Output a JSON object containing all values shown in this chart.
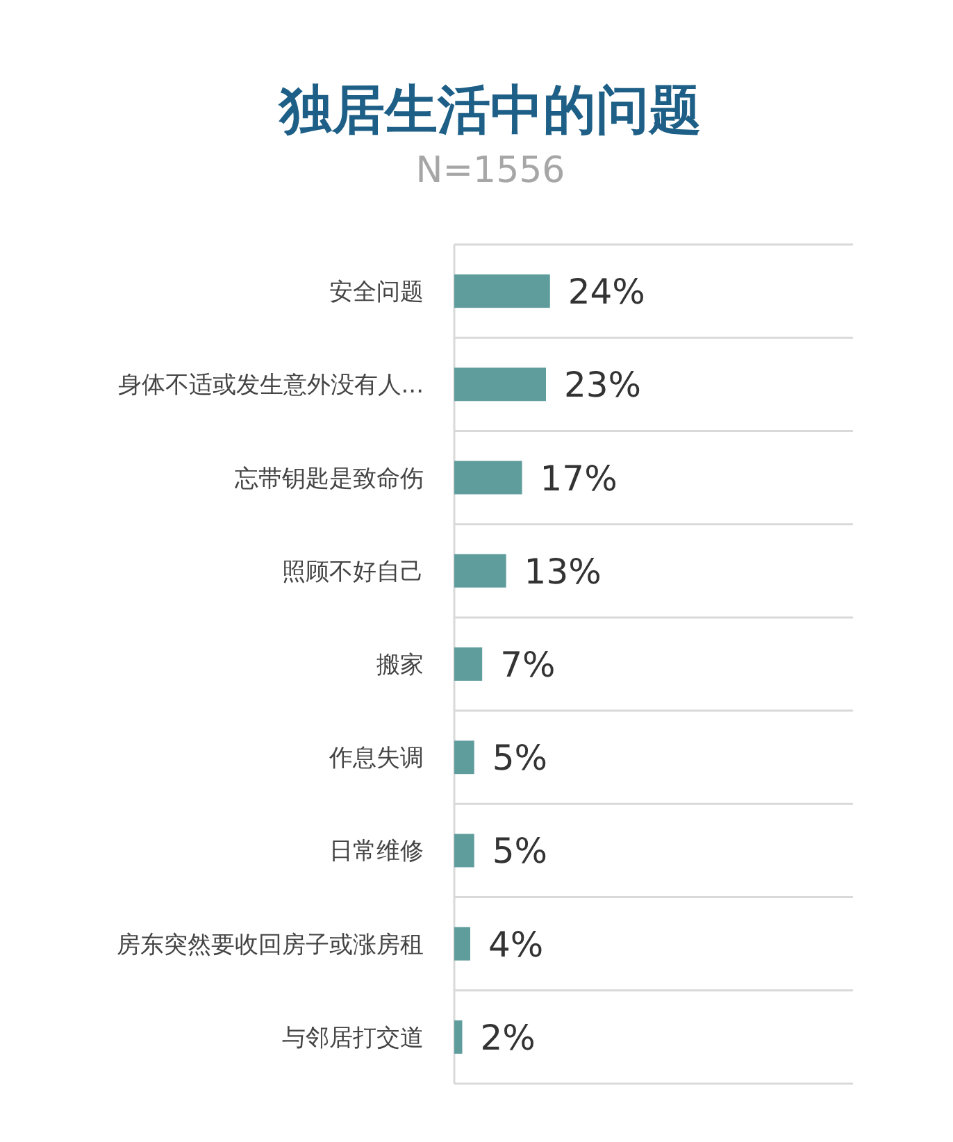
{
  "chart_data": {
    "type": "bar",
    "orientation": "horizontal",
    "title": "独居生活中的问题",
    "subtitle": "N=1556",
    "categories": [
      "安全问题",
      "身体不适或发生意外没有人...",
      "忘带钥匙是致命伤",
      "照顾不好自己",
      "搬家",
      "作息失调",
      "日常维修",
      "房东突然要收回房子或涨房租",
      "与邻居打交道"
    ],
    "values": [
      24,
      23,
      17,
      13,
      7,
      5,
      5,
      4,
      2
    ],
    "value_labels": [
      "24%",
      "23%",
      "17%",
      "13%",
      "7%",
      "5%",
      "5%",
      "4%",
      "2%"
    ],
    "color": "#5f9c9c",
    "xlim": [
      0,
      100
    ],
    "grid": "y"
  }
}
